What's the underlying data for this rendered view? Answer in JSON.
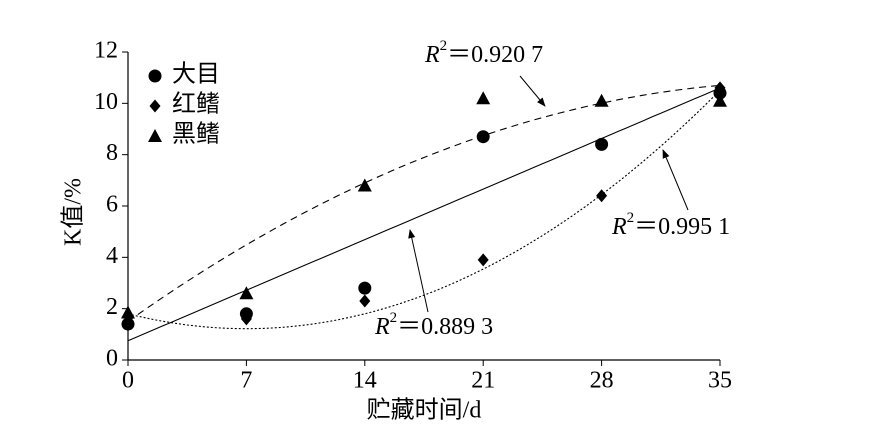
{
  "chart_data": {
    "type": "scatter",
    "x_label": "贮藏时间/d",
    "y_label": "K值/%",
    "x": [
      0,
      7,
      14,
      21,
      28,
      35
    ],
    "series": [
      {
        "name": "大目",
        "marker": "circle",
        "color": "#000000",
        "values": [
          1.4,
          1.8,
          2.8,
          8.7,
          8.4,
          10.4
        ],
        "fit": {
          "style": "solid",
          "coefficients": [
            0.75,
            0.2814,
            0
          ],
          "annotation": {
            "r": "R",
            "sup": "2",
            "text": "＝0.889 3"
          }
        }
      },
      {
        "name": "红鳍",
        "marker": "diamond",
        "color": "#000000",
        "values": [
          1.7,
          1.6,
          2.3,
          3.9,
          6.4,
          10.6
        ],
        "fit": {
          "style": "dotted",
          "coefficients": [
            1.8,
            -0.1657,
            0.01184
          ],
          "annotation": {
            "r": "R",
            "sup": "2",
            "text": "＝0.995 1"
          }
        }
      },
      {
        "name": "黑鳍",
        "marker": "triangle",
        "color": "#000000",
        "values": [
          1.85,
          2.6,
          6.8,
          10.2,
          10.1,
          10.1
        ],
        "fit": {
          "style": "dashed",
          "coefficients": [
            1.5,
            0.4676,
            -0.00585
          ],
          "annotation": {
            "r": "R",
            "sup": "2",
            "text": "＝0.920 7"
          }
        }
      }
    ],
    "xlim": [
      0,
      35
    ],
    "xticks": [
      0,
      7,
      14,
      21,
      28,
      35
    ],
    "ylim": [
      0,
      12
    ],
    "yticks": [
      0,
      2,
      4,
      6,
      8,
      10,
      12
    ],
    "grid": false,
    "legend": "upper left"
  }
}
